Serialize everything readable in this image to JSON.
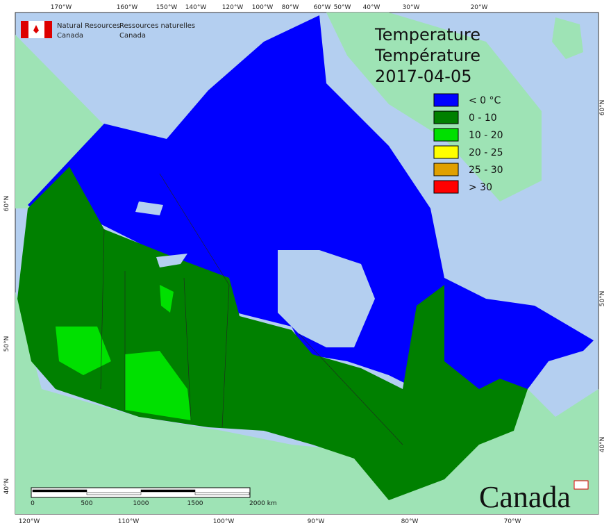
{
  "header": {
    "org_en_1": "Natural Resources",
    "org_en_2": "Canada",
    "org_fr_1": "Ressources naturelles",
    "org_fr_2": "Canada"
  },
  "title": {
    "line1": "Temperature",
    "line2": "Température",
    "date": "2017-04-05"
  },
  "legend": [
    {
      "label": "< 0 °C",
      "color": "#0000ff"
    },
    {
      "label": "0 - 10",
      "color": "#008000"
    },
    {
      "label": "10 - 20",
      "color": "#00e000"
    },
    {
      "label": "20 - 25",
      "color": "#ffff00"
    },
    {
      "label": "25 - 30",
      "color": "#e0a000"
    },
    {
      "label": "> 30",
      "color": "#ff0000"
    }
  ],
  "graticule": {
    "top": [
      "170°W",
      "160°W",
      "150°W",
      "140°W",
      "120°W",
      "100°W",
      "80°W",
      "60°W",
      "50°W",
      "40°W",
      "30°W",
      "20°W"
    ],
    "bottom": [
      "120°W",
      "110°W",
      "100°W",
      "90°W",
      "80°W",
      "70°W"
    ],
    "left": [
      "60°N",
      "50°N",
      "40°N"
    ],
    "right": [
      "60°N",
      "50°N",
      "40°N"
    ]
  },
  "scale_bar": [
    "0",
    "500",
    "1000",
    "1500",
    "2000 km"
  ],
  "wordmark": "Canada"
}
